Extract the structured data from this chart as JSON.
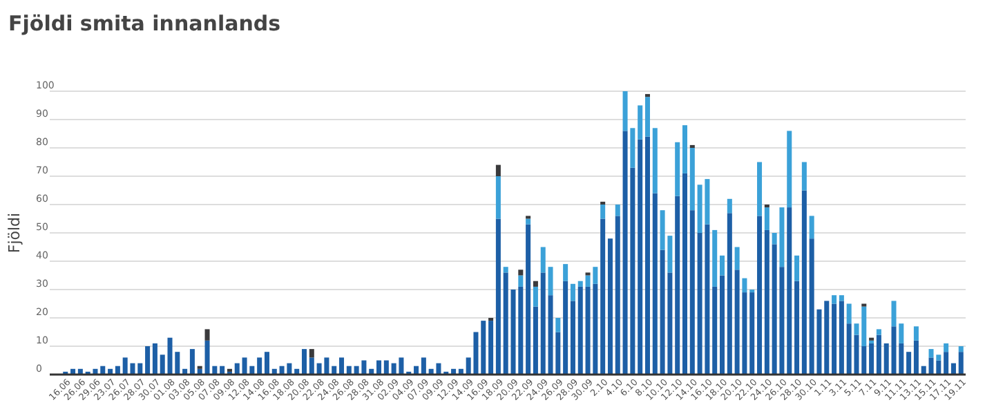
{
  "chart_data": {
    "type": "bar",
    "title": "Fjöldi smita innanlands",
    "ylabel": "Fjöldi",
    "stacked": true,
    "grid": "y",
    "categories": [
      "16.06",
      null,
      "26.06",
      null,
      "29.06",
      null,
      "23.07",
      null,
      "26.07",
      null,
      "28.07",
      null,
      "30.07",
      null,
      "01.08",
      null,
      "03.08",
      null,
      "05.08",
      null,
      "07.08",
      null,
      "09.08",
      null,
      "12.08",
      null,
      "14.08",
      null,
      "16.08",
      null,
      "18.08",
      null,
      "20.08",
      null,
      "22.08",
      null,
      "24.08",
      null,
      "26.08",
      null,
      "28.08",
      null,
      "31.08",
      null,
      "02.09",
      null,
      "04.09",
      null,
      "07.09",
      null,
      "09.09",
      null,
      "12.09",
      null,
      "14.09",
      null,
      "16.09",
      null,
      "18.09",
      null,
      "20.09",
      null,
      "22.09",
      null,
      "24.09",
      null,
      "26.09",
      null,
      "28.09",
      null,
      "30.09",
      null,
      "2.10",
      null,
      "4.10",
      null,
      "6.10",
      null,
      "8.10",
      null,
      "10.10",
      null,
      "12.10",
      null,
      "14.10",
      null,
      "16.10",
      null,
      "18.10",
      null,
      "20.10",
      null,
      "22.10",
      null,
      "24.10",
      null,
      "26.10",
      null,
      "28.10",
      null,
      "30.10",
      null,
      "1.11",
      null,
      "3.11",
      null,
      "5.11",
      null,
      "7.11",
      null,
      "9.11",
      null,
      "11.11",
      null,
      "13.11",
      null,
      "15.11",
      null,
      "17.11",
      null,
      "19.11"
    ],
    "series": [
      {
        "color": "#1d5fa6",
        "values": [
          1,
          2,
          2,
          1,
          2,
          3,
          2,
          3,
          6,
          4,
          4,
          10,
          11,
          7,
          13,
          8,
          2,
          9,
          2,
          12,
          3,
          3,
          1,
          4,
          6,
          3,
          6,
          8,
          2,
          3,
          4,
          2,
          9,
          6,
          4,
          6,
          3,
          6,
          3,
          3,
          5,
          2,
          5,
          5,
          4,
          6,
          1,
          3,
          6,
          2,
          4,
          1,
          2,
          2,
          6,
          15,
          19,
          19,
          55,
          36,
          30,
          31,
          53,
          24,
          36,
          28,
          15,
          33,
          26,
          31,
          31,
          32,
          55,
          48,
          56,
          86,
          73,
          83,
          84,
          64,
          44,
          36,
          63,
          71,
          58,
          50,
          53,
          31,
          35,
          57,
          37,
          29,
          29,
          56,
          51,
          46,
          38,
          59,
          33,
          65,
          48,
          23,
          26,
          25,
          26,
          18,
          14,
          10,
          11,
          14,
          11,
          17,
          11,
          8,
          12,
          3,
          6,
          5,
          8,
          4,
          8
        ]
      },
      {
        "color": "#3ba1d8",
        "values": [
          null,
          null,
          null,
          null,
          null,
          null,
          null,
          null,
          null,
          null,
          null,
          null,
          null,
          null,
          null,
          null,
          null,
          null,
          null,
          null,
          null,
          null,
          null,
          null,
          null,
          null,
          null,
          null,
          null,
          null,
          null,
          null,
          null,
          null,
          null,
          null,
          null,
          null,
          null,
          null,
          null,
          null,
          null,
          null,
          null,
          null,
          null,
          null,
          null,
          null,
          null,
          null,
          null,
          null,
          null,
          null,
          null,
          null,
          15,
          2,
          null,
          4,
          2,
          7,
          9,
          10,
          5,
          6,
          6,
          2,
          4,
          6,
          5,
          null,
          4,
          14,
          14,
          12,
          14,
          23,
          14,
          13,
          19,
          17,
          22,
          17,
          16,
          20,
          7,
          5,
          8,
          5,
          1,
          19,
          8,
          4,
          21,
          27,
          9,
          10,
          8,
          null,
          null,
          3,
          2,
          7,
          4,
          14,
          1,
          2,
          null,
          9,
          7,
          null,
          5,
          null,
          3,
          2,
          3,
          null,
          2
        ]
      },
      {
        "color": "#3a3a3c",
        "values": [
          null,
          null,
          null,
          null,
          null,
          null,
          null,
          null,
          null,
          null,
          null,
          null,
          null,
          null,
          null,
          null,
          null,
          null,
          1,
          4,
          null,
          null,
          1,
          null,
          null,
          null,
          null,
          null,
          null,
          null,
          null,
          null,
          null,
          3,
          null,
          null,
          null,
          null,
          null,
          null,
          null,
          null,
          null,
          null,
          null,
          null,
          null,
          null,
          null,
          null,
          null,
          null,
          null,
          null,
          null,
          null,
          null,
          1,
          4,
          null,
          null,
          2,
          1,
          2,
          null,
          null,
          null,
          null,
          null,
          null,
          1,
          null,
          1,
          null,
          null,
          null,
          null,
          null,
          1,
          null,
          null,
          null,
          null,
          null,
          1,
          null,
          null,
          null,
          null,
          null,
          null,
          null,
          null,
          null,
          1,
          null,
          null,
          null,
          null,
          null,
          null,
          null,
          null,
          null,
          null,
          null,
          null,
          1,
          1,
          null,
          null,
          null,
          null,
          null,
          null,
          null,
          null,
          null,
          null,
          null,
          null
        ]
      }
    ],
    "ylim": [
      0,
      100
    ],
    "yticks": [
      0,
      10,
      20,
      30,
      40,
      50,
      60,
      70,
      80,
      90,
      100
    ]
  }
}
